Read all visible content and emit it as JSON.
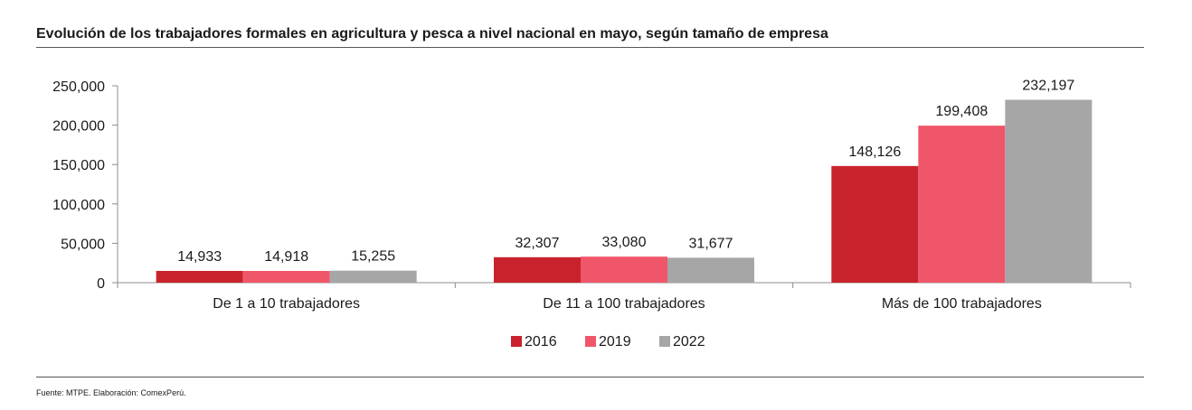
{
  "title": "Evolución de los trabajadores formales en agricultura y pesca a nivel nacional en mayo, según tamaño de empresa",
  "source": "Fuente: MTPE. Elaboración: ComexPerú.",
  "colors": {
    "s2016": "#c8232c",
    "s2019": "#f0566a",
    "s2022": "#a6a6a6"
  },
  "chart_data": {
    "type": "bar",
    "title": "Evolución de los trabajadores formales en agricultura y pesca a nivel nacional en mayo, según tamaño de empresa",
    "xlabel": "",
    "ylabel": "",
    "ylim": [
      0,
      250000
    ],
    "yticks": [
      0,
      50000,
      100000,
      150000,
      200000,
      250000
    ],
    "ytick_labels": [
      "0",
      "50,000",
      "100,000",
      "150,000",
      "200,000",
      "250,000"
    ],
    "categories": [
      "De 1 a 10 trabajadores",
      "De 11 a 100 trabajadores",
      "Más de 100 trabajadores"
    ],
    "series": [
      {
        "name": "2016",
        "values": [
          14933,
          32307,
          148126
        ],
        "labels": [
          "14,933",
          "32,307",
          "148,126"
        ]
      },
      {
        "name": "2019",
        "values": [
          14918,
          33080,
          199408
        ],
        "labels": [
          "14,918",
          "33,080",
          "199,408"
        ]
      },
      {
        "name": "2022",
        "values": [
          15255,
          31677,
          232197
        ],
        "labels": [
          "15,255",
          "31,677",
          "232,197"
        ]
      }
    ],
    "grid": false,
    "legend": "bottom-center"
  }
}
